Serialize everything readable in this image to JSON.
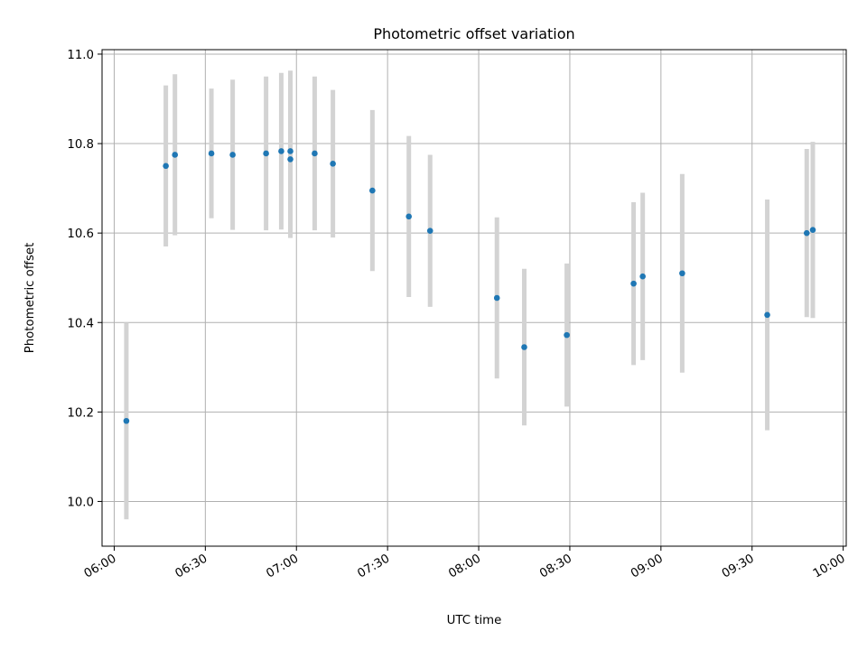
{
  "chart_data": {
    "type": "scatter",
    "title": "Photometric offset variation",
    "xlabel": "UTC time",
    "ylabel": "Photometric offset",
    "x_is_time": true,
    "xlim": [
      "05:56",
      "10:01"
    ],
    "ylim": [
      9.9,
      11.01
    ],
    "x_ticks": [
      "06:00",
      "06:30",
      "07:00",
      "07:30",
      "08:00",
      "08:30",
      "09:00",
      "09:30",
      "10:00"
    ],
    "y_ticks": [
      "10.0",
      "10.2",
      "10.4",
      "10.6",
      "10.8",
      "11.0"
    ],
    "grid": true,
    "point_color": "#1f77b4",
    "errorbar_color": "#d3d3d3",
    "series": [
      {
        "points": [
          {
            "x": "06:04",
            "y": 10.18,
            "err": 0.22
          },
          {
            "x": "06:17",
            "y": 10.75,
            "err": 0.18
          },
          {
            "x": "06:20",
            "y": 10.775,
            "err": 0.18
          },
          {
            "x": "06:32",
            "y": 10.778,
            "err": 0.145
          },
          {
            "x": "06:39",
            "y": 10.775,
            "err": 0.168
          },
          {
            "x": "06:50",
            "y": 10.778,
            "err": 0.172
          },
          {
            "x": "06:55",
            "y": 10.783,
            "err": 0.175
          },
          {
            "x": "06:58",
            "y": 10.765,
            "err": 0.176
          },
          {
            "x": "06:58",
            "y": 10.783,
            "err": 0.18
          },
          {
            "x": "07:06",
            "y": 10.778,
            "err": 0.172
          },
          {
            "x": "07:12",
            "y": 10.755,
            "err": 0.165
          },
          {
            "x": "07:25",
            "y": 10.695,
            "err": 0.18
          },
          {
            "x": "07:37",
            "y": 10.637,
            "err": 0.18
          },
          {
            "x": "07:44",
            "y": 10.605,
            "err": 0.17
          },
          {
            "x": "08:06",
            "y": 10.455,
            "err": 0.18
          },
          {
            "x": "08:15",
            "y": 10.345,
            "err": 0.175
          },
          {
            "x": "08:29",
            "y": 10.372,
            "err": 0.16
          },
          {
            "x": "08:51",
            "y": 10.487,
            "err": 0.182
          },
          {
            "x": "08:54",
            "y": 10.503,
            "err": 0.187
          },
          {
            "x": "09:07",
            "y": 10.51,
            "err": 0.222
          },
          {
            "x": "09:35",
            "y": 10.417,
            "err": 0.258
          },
          {
            "x": "09:48",
            "y": 10.6,
            "err": 0.188
          },
          {
            "x": "09:50",
            "y": 10.607,
            "err": 0.197
          }
        ]
      }
    ]
  }
}
